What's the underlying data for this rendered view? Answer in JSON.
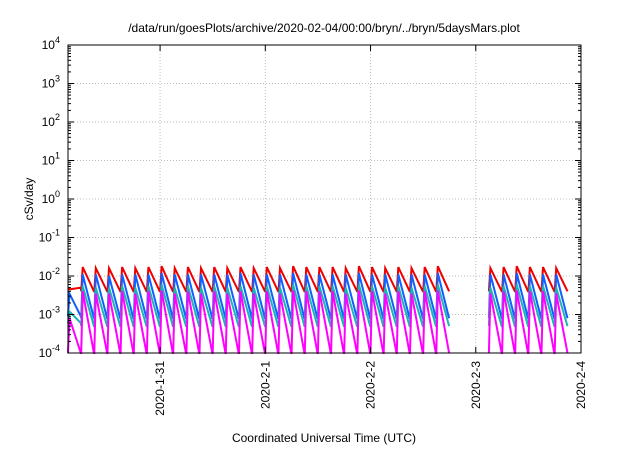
{
  "chart_data": {
    "type": "line",
    "title": "/data/run/goesPlots/archive/2020-02-04/00:00/bryn/../bryn/5daysMars.plot",
    "xlabel": "Coordinated Universal Time (UTC)",
    "ylabel": "cSv/day",
    "y_scale": "log",
    "ylim": [
      0.0001,
      10000
    ],
    "y_ticks": [
      {
        "value": 0.0001,
        "base": "10",
        "exp": "-4"
      },
      {
        "value": 0.001,
        "base": "10",
        "exp": "-3"
      },
      {
        "value": 0.01,
        "base": "10",
        "exp": "-2"
      },
      {
        "value": 0.1,
        "base": "10",
        "exp": "-1"
      },
      {
        "value": 1,
        "base": "10",
        "exp": "0"
      },
      {
        "value": 10,
        "base": "10",
        "exp": "1"
      },
      {
        "value": 100,
        "base": "10",
        "exp": "2"
      },
      {
        "value": 1000,
        "base": "10",
        "exp": "3"
      },
      {
        "value": 10000,
        "base": "10",
        "exp": "4"
      }
    ],
    "xlim": [
      "2020-01-30T03:00",
      "2020-02-04T00:00"
    ],
    "x_ticks": [
      "2020-1-31",
      "2020-2-1",
      "2020-2-2",
      "2020-2-3",
      "2020-2-4"
    ],
    "grid": true,
    "cycle_hours": 3,
    "gaps": [
      [
        "2020-02-02T18:00",
        "2020-02-03T03:00"
      ],
      [
        "2020-02-03T21:00",
        "2020-02-04T00:00"
      ]
    ],
    "series": [
      {
        "color": "#ee0000",
        "peaks": [
          0.0045,
          0.017,
          0.016,
          0.016,
          0.017,
          0.016,
          0.017,
          0.018,
          0.016,
          0.017,
          0.016,
          0.017,
          0.016,
          0.017,
          0.016,
          0.017,
          0.016,
          0.018,
          0.017,
          0.017,
          0.017,
          0.016,
          0.018,
          0.017,
          0.016,
          0.017,
          0.016,
          0.017,
          0.018,
          0.017,
          0.016,
          0.017,
          0.016,
          0.017,
          0.018,
          0.017,
          0.017,
          0.016,
          0.017
        ],
        "troughs": [
          0.005,
          0.004,
          0.004,
          0.004,
          0.004,
          0.004,
          0.004,
          0.004,
          0.004,
          0.004,
          0.004,
          0.004,
          0.004,
          0.004,
          0.004,
          0.004,
          0.004,
          0.004,
          0.004,
          0.004,
          0.004,
          0.004,
          0.004,
          0.004,
          0.004,
          0.004,
          0.004,
          0.004,
          0.004,
          0.004,
          0.004,
          0.004,
          0.004,
          0.004,
          0.004,
          0.004,
          0.004,
          0.004,
          0.004
        ]
      },
      {
        "color": "#1060ff",
        "peaks": [
          0.0035,
          0.011,
          0.011,
          0.01,
          0.011,
          0.011,
          0.011,
          0.012,
          0.011,
          0.011,
          0.011,
          0.011,
          0.011,
          0.012,
          0.011,
          0.011,
          0.011,
          0.012,
          0.011,
          0.011,
          0.011,
          0.011,
          0.012,
          0.011,
          0.011,
          0.011,
          0.011,
          0.011,
          0.012,
          0.011,
          0.011,
          0.011,
          0.011,
          0.011,
          0.012,
          0.011,
          0.011,
          0.011,
          0.011
        ],
        "troughs": [
          0.0009,
          0.0008,
          0.0008,
          0.0008,
          0.0008,
          0.0008,
          0.0008,
          0.0008,
          0.0008,
          0.0008,
          0.0008,
          0.0008,
          0.0008,
          0.0008,
          0.0008,
          0.0008,
          0.0008,
          0.0008,
          0.0008,
          0.0008,
          0.0008,
          0.0008,
          0.0008,
          0.0008,
          0.0008,
          0.0008,
          0.0008,
          0.0008,
          0.0008,
          0.0008,
          0.0008,
          0.0008,
          0.0008,
          0.0008,
          0.0008,
          0.0008,
          0.0008,
          0.0008,
          0.0008
        ]
      },
      {
        "color": "#1eb4b4",
        "peaks": [
          0.0012,
          0.0055,
          0.005,
          0.005,
          0.0055,
          0.005,
          0.0055,
          0.006,
          0.005,
          0.0055,
          0.005,
          0.0055,
          0.005,
          0.0055,
          0.005,
          0.0055,
          0.005,
          0.006,
          0.0055,
          0.0055,
          0.0055,
          0.005,
          0.006,
          0.0055,
          0.005,
          0.0055,
          0.005,
          0.0055,
          0.006,
          0.0055,
          0.005,
          0.0055,
          0.005,
          0.0055,
          0.006,
          0.0055,
          0.0055,
          0.005,
          0.0055
        ],
        "troughs": [
          0.0006,
          0.0005,
          0.0005,
          0.0005,
          0.0005,
          0.0005,
          0.0005,
          0.0005,
          0.0005,
          0.0005,
          0.0005,
          0.0005,
          0.0005,
          0.0005,
          0.0005,
          0.0005,
          0.0005,
          0.0005,
          0.0005,
          0.0005,
          0.0005,
          0.0005,
          0.0005,
          0.0005,
          0.0005,
          0.0005,
          0.0005,
          0.0005,
          0.0005,
          0.0005,
          0.0005,
          0.0005,
          0.0005,
          0.0005,
          0.0005,
          0.0005,
          0.0005,
          0.0005,
          0.0005
        ]
      },
      {
        "color": "#ff00ff",
        "peaks": [
          0.0008,
          0.004,
          0.0035,
          0.0035,
          0.004,
          0.0035,
          0.004,
          0.0042,
          0.0035,
          0.004,
          0.0035,
          0.004,
          0.0035,
          0.004,
          0.0035,
          0.004,
          0.0035,
          0.0042,
          0.004,
          0.004,
          0.004,
          0.0035,
          0.0042,
          0.004,
          0.0035,
          0.004,
          0.0035,
          0.004,
          0.0042,
          0.004,
          0.0035,
          0.004,
          0.0035,
          0.004,
          0.0042,
          0.004,
          0.004,
          0.0035,
          0.004
        ],
        "troughs": [
          9e-05,
          9e-05,
          9e-05,
          9e-05,
          9e-05,
          9e-05,
          9e-05,
          9e-05,
          9e-05,
          9e-05,
          9e-05,
          9e-05,
          9e-05,
          9e-05,
          9e-05,
          9e-05,
          9e-05,
          9e-05,
          9e-05,
          9e-05,
          9e-05,
          9e-05,
          9e-05,
          9e-05,
          9e-05,
          9e-05,
          9e-05,
          9e-05,
          9e-05,
          9e-05,
          9e-05,
          9e-05,
          9e-05,
          9e-05,
          9e-05,
          9e-05,
          9e-05,
          9e-05,
          9e-05
        ]
      }
    ]
  }
}
